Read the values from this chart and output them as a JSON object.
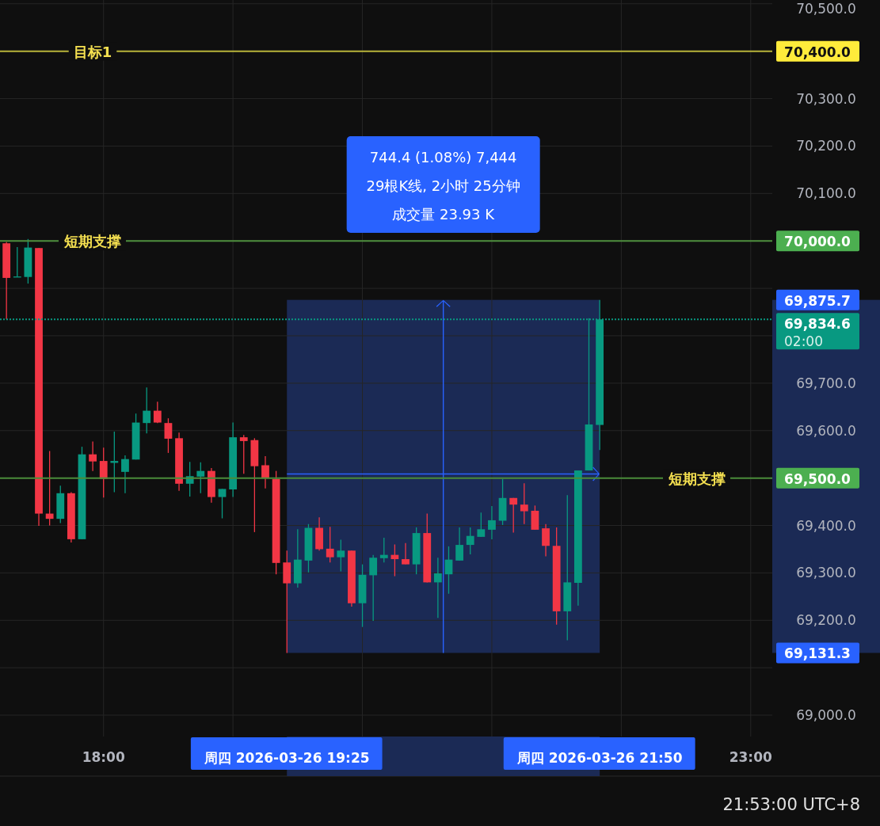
{
  "chart_data": {
    "type": "candlestick",
    "x": [
      "2026-03-26T17:15",
      "2026-03-26T17:20",
      "2026-03-26T17:25",
      "2026-03-26T17:30",
      "2026-03-26T17:35",
      "2026-03-26T17:40",
      "2026-03-26T17:45",
      "2026-03-26T17:50",
      "2026-03-26T17:55",
      "2026-03-26T18:00",
      "2026-03-26T18:05",
      "2026-03-26T18:10",
      "2026-03-26T18:15",
      "2026-03-26T18:20",
      "2026-03-26T18:25",
      "2026-03-26T18:30",
      "2026-03-26T18:35",
      "2026-03-26T18:40",
      "2026-03-26T18:45",
      "2026-03-26T18:50",
      "2026-03-26T18:55",
      "2026-03-26T19:00",
      "2026-03-26T19:05",
      "2026-03-26T19:10",
      "2026-03-26T19:15",
      "2026-03-26T19:20",
      "2026-03-26T19:25",
      "2026-03-26T19:30",
      "2026-03-26T19:35",
      "2026-03-26T19:40",
      "2026-03-26T19:45",
      "2026-03-26T19:50",
      "2026-03-26T19:55",
      "2026-03-26T20:00",
      "2026-03-26T20:05",
      "2026-03-26T20:10",
      "2026-03-26T20:15",
      "2026-03-26T20:20",
      "2026-03-26T20:25",
      "2026-03-26T20:30",
      "2026-03-26T20:35",
      "2026-03-26T20:40",
      "2026-03-26T20:45",
      "2026-03-26T20:50",
      "2026-03-26T20:55",
      "2026-03-26T21:00",
      "2026-03-26T21:05",
      "2026-03-26T21:10",
      "2026-03-26T21:15",
      "2026-03-26T21:20",
      "2026-03-26T21:25",
      "2026-03-26T21:30",
      "2026-03-26T21:35",
      "2026-03-26T21:40",
      "2026-03-26T21:45",
      "2026-03-26T21:50"
    ],
    "ohlc": [
      [
        69995,
        69998,
        69835,
        69922
      ],
      [
        69924,
        69987,
        69924,
        69925
      ],
      [
        69924,
        70004,
        69910,
        69986
      ],
      [
        69985,
        69985,
        69399,
        69425
      ],
      [
        69425,
        69557,
        69400,
        69414
      ],
      [
        69414,
        69484,
        69405,
        69468
      ],
      [
        69468,
        69470,
        69364,
        69371
      ],
      [
        69371,
        69566,
        69371,
        69550
      ],
      [
        69550,
        69577,
        69515,
        69535
      ],
      [
        69536,
        69564,
        69459,
        69498
      ],
      [
        69532,
        69598,
        69470,
        69536
      ],
      [
        69513,
        69548,
        69468,
        69540
      ],
      [
        69539,
        69636,
        69539,
        69617
      ],
      [
        69616,
        69691,
        69594,
        69642
      ],
      [
        69642,
        69661,
        69616,
        69617
      ],
      [
        69616,
        69626,
        69553,
        69583
      ],
      [
        69584,
        69596,
        69473,
        69488
      ],
      [
        69488,
        69534,
        69461,
        69504
      ],
      [
        69503,
        69533,
        69468,
        69515
      ],
      [
        69515,
        69521,
        69448,
        69460
      ],
      [
        69460,
        69477,
        69415,
        69477
      ],
      [
        69476,
        69617,
        69460,
        69586
      ],
      [
        69586,
        69591,
        69509,
        69578
      ],
      [
        69580,
        69584,
        69386,
        69525
      ],
      [
        69527,
        69546,
        69478,
        69499
      ],
      [
        69498,
        69515,
        69297,
        69321
      ],
      [
        69322,
        69347,
        69131.3,
        69278
      ],
      [
        69278,
        69392,
        69269,
        69328
      ],
      [
        69326,
        69403,
        69301,
        69395
      ],
      [
        69395,
        69417,
        69347,
        69350
      ],
      [
        69351,
        69397,
        69322,
        69333
      ],
      [
        69333,
        69370,
        69303,
        69347
      ],
      [
        69347,
        69347,
        69229,
        69236
      ],
      [
        69236,
        69318,
        69186,
        69296
      ],
      [
        69295,
        69338,
        69199,
        69332
      ],
      [
        69331,
        69374,
        69322,
        69338
      ],
      [
        69338,
        69360,
        69293,
        69329
      ],
      [
        69329,
        69363,
        69318,
        69318
      ],
      [
        69318,
        69396,
        69297,
        69384
      ],
      [
        69384,
        69425,
        69280,
        69280
      ],
      [
        69280,
        69332,
        69205,
        69299
      ],
      [
        69297,
        69356,
        69256,
        69328
      ],
      [
        69326,
        69396,
        69326,
        69359
      ],
      [
        69359,
        69396,
        69339,
        69378
      ],
      [
        69376,
        69427,
        69376,
        69392
      ],
      [
        69391,
        69441,
        69371,
        69411
      ],
      [
        69410,
        69498,
        69401,
        69458
      ],
      [
        69458,
        69458,
        69385,
        69444
      ],
      [
        69444,
        69489,
        69403,
        69430
      ],
      [
        69431,
        69442,
        69391,
        69391
      ],
      [
        69394,
        69403,
        69335,
        69357
      ],
      [
        69357,
        69396,
        69191,
        69219
      ],
      [
        69219,
        69464,
        69158,
        69280
      ],
      [
        69279,
        69516,
        69231,
        69516
      ],
      [
        69516,
        69837,
        69516,
        69613
      ],
      [
        69612,
        69875.7,
        69559,
        69834.6
      ]
    ],
    "colors": [
      "#f23645",
      "#089981",
      "#089981",
      "#f23645",
      "#f23645",
      "#089981",
      "#f23645",
      "#089981",
      "#f23645",
      "#f23645",
      "#089981",
      "#089981",
      "#089981",
      "#089981",
      "#f23645",
      "#f23645",
      "#f23645",
      "#089981",
      "#089981",
      "#f23645",
      "#089981",
      "#089981",
      "#f23645",
      "#f23645",
      "#f23645",
      "#f23645",
      "#f23645",
      "#089981",
      "#089981",
      "#f23645",
      "#f23645",
      "#089981",
      "#f23645",
      "#089981",
      "#089981",
      "#089981",
      "#f23645",
      "#f23645",
      "#089981",
      "#f23645",
      "#089981",
      "#089981",
      "#089981",
      "#089981",
      "#089981",
      "#089981",
      "#089981",
      "#f23645",
      "#f23645",
      "#f23645",
      "#f23645",
      "#f23645",
      "#089981",
      "#089981",
      "#089981",
      "#089981"
    ],
    "xlim": [
      "2026-03-26T17:12",
      "2026-03-26T23:10"
    ],
    "xticks": [
      {
        "value": "2026-03-26T18:00",
        "label": "18:00"
      },
      {
        "value": "2026-03-26T19:00",
        "label": null
      },
      {
        "value": "2026-03-26T20:00",
        "label": null
      },
      {
        "value": "2026-03-26T21:00",
        "label": null
      },
      {
        "value": "2026-03-26T22:00",
        "label": null
      },
      {
        "value": "2026-03-26T23:00",
        "label": "23:00"
      }
    ],
    "ylim": [
      68955,
      70508
    ],
    "yticks": [
      {
        "value": 69000,
        "label": "69,000.0"
      },
      {
        "value": 69100,
        "label": null
      },
      {
        "value": 69200,
        "label": "69,200.0"
      },
      {
        "value": 69300,
        "label": "69,300.0"
      },
      {
        "value": 69400,
        "label": "69,400.0"
      },
      {
        "value": 69500,
        "label": null
      },
      {
        "value": 69600,
        "label": "69,600.0"
      },
      {
        "value": 69700,
        "label": "69,700.0"
      },
      {
        "value": 69800,
        "label": null
      },
      {
        "value": 69900,
        "label": null
      },
      {
        "value": 70000,
        "label": null
      },
      {
        "value": 70100,
        "label": "70,100.0"
      },
      {
        "value": 70200,
        "label": "70,200.0"
      },
      {
        "value": 70300,
        "label": "70,300.0"
      },
      {
        "value": 70400,
        "label": null
      },
      {
        "value": 70500,
        "label": "70,500.0"
      }
    ],
    "grid": true,
    "ref_lines": [
      {
        "axis": "y",
        "value": 70400,
        "label": "目标1",
        "color": "#b8b43a"
      },
      {
        "axis": "y",
        "value": 70000,
        "label": "短期支撑",
        "color": "#4e8f3e"
      },
      {
        "axis": "y",
        "value": 69500,
        "label": "短期支撑",
        "color": "#4a8c3a"
      },
      {
        "axis": "y",
        "value": 69834.6,
        "color": "#089981",
        "line_style": "dotted"
      }
    ],
    "bands": [
      {
        "axis": "x",
        "from": "2026-03-26T19:25",
        "to": "2026-03-26T21:50",
        "color": "#1b2a55"
      }
    ],
    "annotations": [
      "744.4 (1.08%) 7,444",
      "29根K线, 2小时 25分钟",
      "成交量 23.93 K",
      "21:53:00 UTC+8",
      "周四 2026-03-26   19:25",
      "周四 2026-03-26   21:50",
      "70,400.0",
      "70,000.0",
      "69,500.0",
      "69,834.6",
      "69,875.7",
      "02:00",
      "69,131.3"
    ]
  }
}
